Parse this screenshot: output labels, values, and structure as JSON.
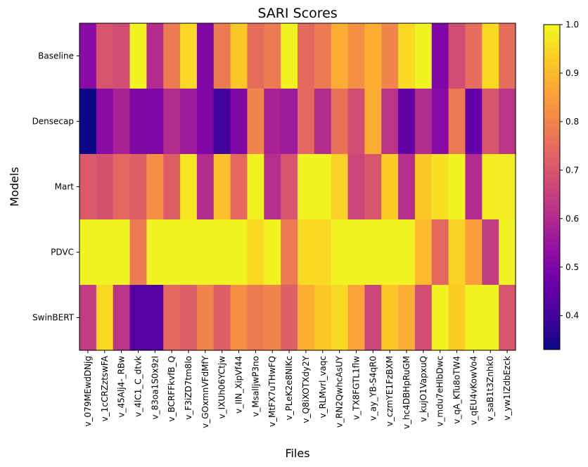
{
  "chart_data": {
    "type": "heatmap",
    "title": "SARI Scores",
    "xlabel": "Files",
    "ylabel": "Models",
    "colormap": "plasma",
    "vmin": 0.33,
    "vmax": 1.0,
    "colorbar_ticks": [
      "0.4",
      "0.5",
      "0.6",
      "0.7",
      "0.8",
      "0.9",
      "1.0"
    ],
    "colorbar_tick_values": [
      0.4,
      0.5,
      0.6,
      0.7,
      0.8,
      0.9,
      1.0
    ],
    "rows": [
      "Baseline",
      "Densecap",
      "Mart",
      "PDVC",
      "SwinBERT"
    ],
    "columns": [
      "v_079MEwdDNjg",
      "v_1cCRZztswFA",
      "v_45Alj4-_RBw",
      "v_4lC1_C_dtvk",
      "v_83oa1S0x9zI",
      "v_BCRFFkvfB_Q",
      "v_F3iZD7tm8lo",
      "v_GOxmnVFdMfY",
      "v_IXUh06YCtjw",
      "v_IIN_XipVf44",
      "v_MsalljwP3no",
      "v_MtFX7uTHwFQ",
      "v_PLeK2e8NlKc",
      "v_Q8iXOTXdy2Y",
      "v_RLMvrl_vaqc",
      "v_RN2QwhcAsUY",
      "v_TX8FGTL1flw",
      "v_ay_YB-S4qR0",
      "v_czmYE1FzBXM",
      "v_hc4DBHpRuGM",
      "v_kujO1VapxuQ",
      "v_mdu7eHlbDwc",
      "v_qA_KTu8oTW4",
      "v_qEU4vKowVo4",
      "v_saB1t3Znhk0",
      "v_yw1lZdbEzck"
    ],
    "values": [
      [
        0.52,
        0.7,
        0.68,
        0.99,
        0.6,
        0.78,
        0.95,
        0.5,
        0.78,
        0.92,
        0.75,
        0.78,
        0.99,
        0.74,
        0.78,
        0.88,
        0.82,
        0.88,
        0.8,
        0.95,
        0.99,
        0.5,
        0.68,
        0.75,
        0.95,
        0.75
      ],
      [
        0.33,
        0.52,
        0.58,
        0.5,
        0.5,
        0.6,
        0.56,
        0.5,
        0.4,
        0.5,
        0.8,
        0.58,
        0.56,
        0.74,
        0.6,
        0.76,
        0.68,
        0.88,
        0.62,
        0.45,
        0.6,
        0.52,
        0.78,
        0.45,
        0.7,
        0.62
      ],
      [
        0.71,
        0.69,
        0.74,
        0.72,
        0.82,
        0.72,
        0.97,
        0.6,
        0.91,
        0.74,
        0.99,
        0.61,
        0.7,
        0.99,
        0.99,
        0.94,
        0.66,
        0.7,
        0.93,
        0.61,
        0.92,
        0.96,
        0.99,
        0.6,
        0.98,
        0.98
      ],
      [
        0.99,
        0.99,
        0.99,
        0.78,
        0.99,
        0.99,
        0.99,
        0.99,
        0.99,
        0.99,
        0.95,
        0.99,
        0.78,
        0.95,
        0.95,
        0.99,
        0.99,
        0.99,
        0.99,
        0.99,
        0.9,
        0.74,
        0.94,
        0.85,
        0.64,
        0.99
      ],
      [
        0.64,
        0.95,
        0.62,
        0.43,
        0.43,
        0.74,
        0.72,
        0.8,
        0.72,
        0.82,
        0.78,
        0.8,
        0.72,
        0.88,
        0.92,
        0.95,
        0.86,
        0.66,
        0.92,
        0.88,
        0.68,
        0.99,
        0.93,
        0.99,
        0.99,
        0.7
      ]
    ]
  }
}
